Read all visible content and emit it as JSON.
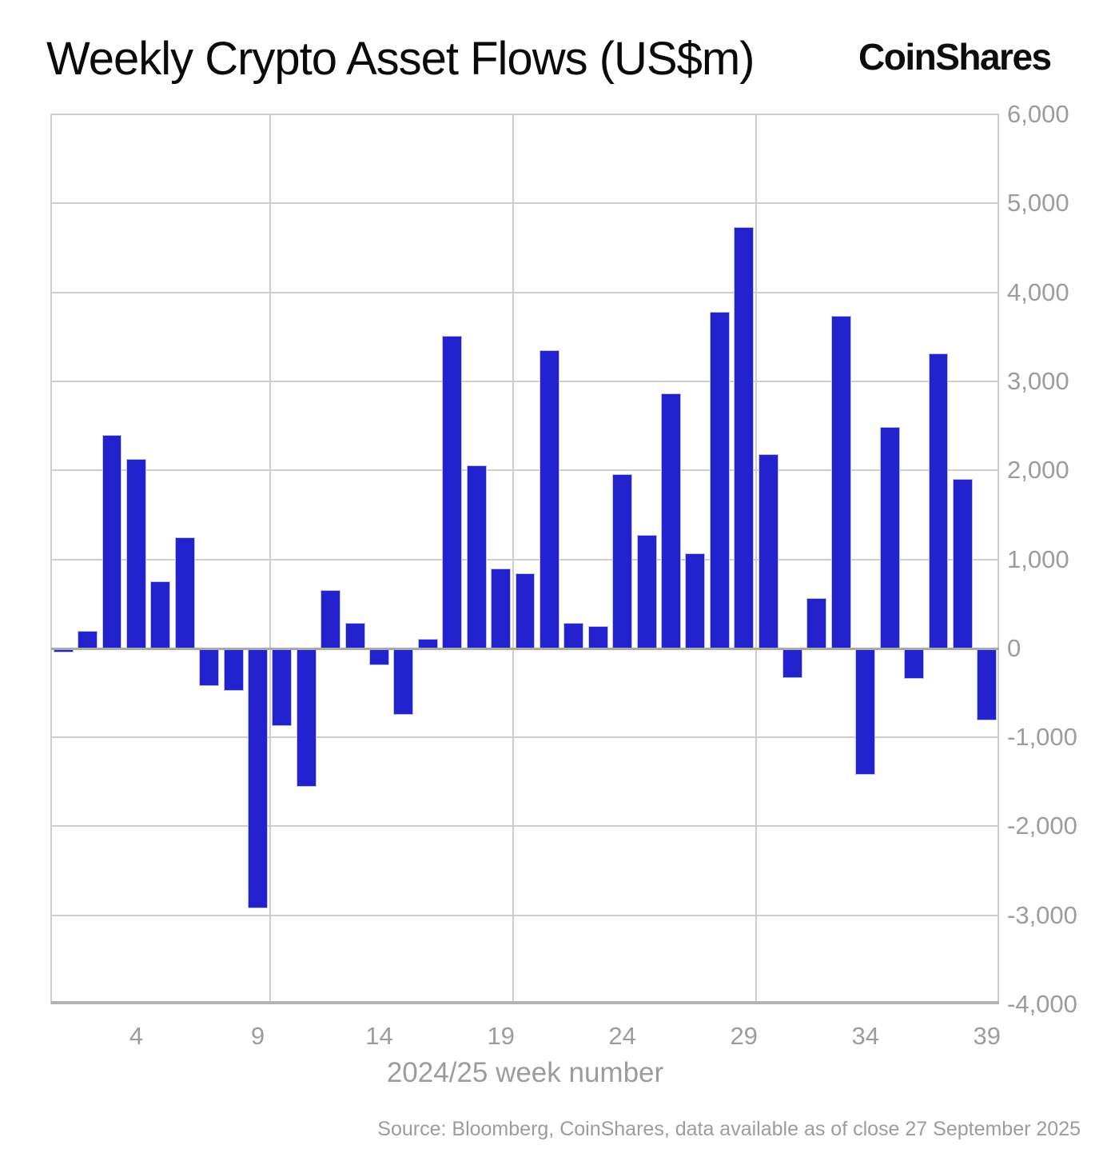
{
  "header": {
    "title": "Weekly Crypto Asset Flows (US$m)",
    "logo_text": "CoinShares"
  },
  "footer": {
    "source_text": "Source: Bloomberg, CoinShares, data available as of close 27 September 2025"
  },
  "colors": {
    "bar": "#2322cf",
    "gridline": "#cdcdcd",
    "zero_line": "#a9a9a9",
    "axis_line": "#b3b3b3",
    "label_gray": "#9c9c9c",
    "title_black": "#0a0a0a"
  },
  "chart_data": {
    "type": "bar",
    "title": "Weekly Crypto Asset Flows (US$m)",
    "xlabel": "2024/25 week number",
    "ylabel": "",
    "x": [
      1,
      2,
      3,
      4,
      5,
      6,
      7,
      8,
      9,
      10,
      11,
      12,
      13,
      14,
      15,
      16,
      17,
      18,
      19,
      20,
      21,
      22,
      23,
      24,
      25,
      26,
      27,
      28,
      29,
      30,
      31,
      32,
      33,
      34,
      35,
      36,
      37,
      38,
      39
    ],
    "values": [
      -50,
      200,
      2400,
      2130,
      750,
      1250,
      -420,
      -480,
      -2920,
      -870,
      -1560,
      650,
      290,
      -190,
      -750,
      110,
      3510,
      2060,
      900,
      840,
      3350,
      290,
      250,
      1960,
      1270,
      2860,
      1070,
      3780,
      4730,
      2180,
      -330,
      560,
      3740,
      -1420,
      2490,
      -340,
      3310,
      1900,
      -810
    ],
    "ylim": [
      -4000,
      6000
    ],
    "y_ticks": [
      6000,
      5000,
      4000,
      3000,
      2000,
      1000,
      0,
      -1000,
      -2000,
      -3000,
      -4000
    ],
    "y_tick_labels": [
      "6,000",
      "5,000",
      "4,000",
      "3,000",
      "2,000",
      "1,000",
      "0",
      "-1,000",
      "-2,000",
      "-3,000",
      "-4,000"
    ],
    "x_ticks": [
      4,
      9,
      14,
      19,
      24,
      29,
      34,
      39
    ],
    "x_gridline_boundaries": [
      0.5,
      9.5,
      19.5,
      29.5,
      39.5
    ],
    "grid": "on",
    "legend": "none",
    "y_axis_side": "right"
  }
}
